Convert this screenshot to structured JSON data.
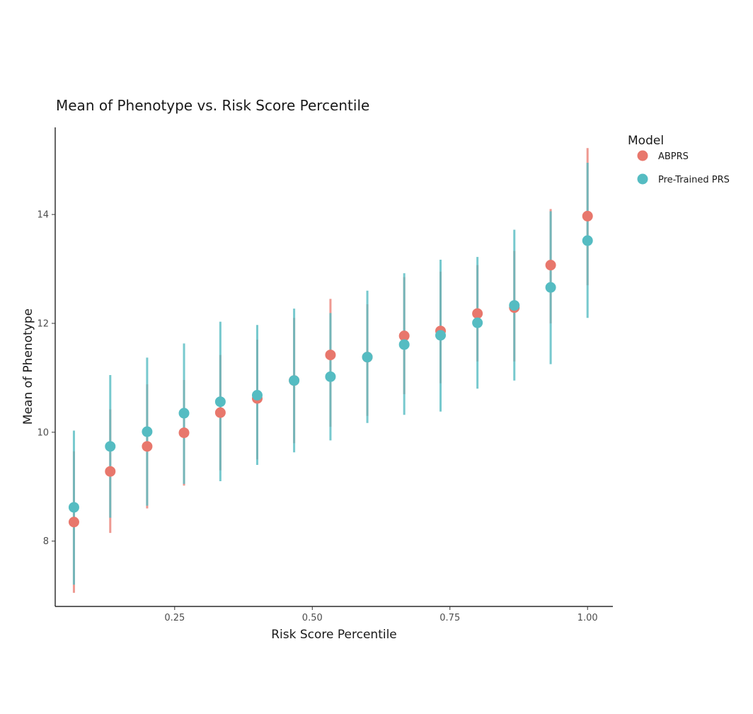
{
  "chart_data": {
    "type": "scatter",
    "title": "Mean of Phenotype vs. Risk Score Percentile",
    "xlabel": "Risk Score Percentile",
    "ylabel": "Mean of Phenotype",
    "xlim": [
      0.033,
      1.046
    ],
    "ylim": [
      6.8,
      15.6
    ],
    "x_ticks": [
      0.25,
      0.5,
      0.75,
      1.0
    ],
    "x_tick_labels": [
      "0.25",
      "0.50",
      "0.75",
      "1.00"
    ],
    "y_ticks": [
      8,
      10,
      12,
      14
    ],
    "y_tick_labels": [
      "8",
      "10",
      "12",
      "14"
    ],
    "grid": false,
    "legend": {
      "title": "Model",
      "position": "right"
    },
    "x": [
      0.067,
      0.133,
      0.2,
      0.267,
      0.333,
      0.4,
      0.467,
      0.533,
      0.6,
      0.667,
      0.733,
      0.8,
      0.867,
      0.933,
      1.0
    ],
    "series": [
      {
        "name": "ABPRS",
        "color": "#E8776C",
        "mean": [
          8.35,
          9.28,
          9.74,
          9.99,
          10.36,
          10.62,
          10.95,
          11.42,
          11.38,
          11.77,
          11.86,
          12.18,
          12.29,
          13.07,
          13.97
        ],
        "lower": [
          7.05,
          8.15,
          8.6,
          9.02,
          9.3,
          9.5,
          9.8,
          10.1,
          10.3,
          10.7,
          10.9,
          11.3,
          11.3,
          12.0,
          12.7
        ],
        "upper": [
          9.65,
          10.42,
          10.88,
          10.96,
          11.42,
          11.7,
          12.1,
          12.45,
          12.35,
          12.85,
          12.95,
          13.07,
          13.33,
          14.1,
          15.22
        ]
      },
      {
        "name": "Pre-Trained PRS",
        "color": "#55BCC2",
        "mean": [
          8.62,
          9.74,
          10.01,
          10.35,
          10.56,
          10.68,
          10.95,
          11.02,
          11.38,
          11.61,
          11.78,
          12.01,
          12.33,
          12.66,
          13.52
        ],
        "lower": [
          7.2,
          8.43,
          8.65,
          9.05,
          9.1,
          9.4,
          9.63,
          9.85,
          10.17,
          10.32,
          10.38,
          10.8,
          10.95,
          11.25,
          12.1
        ],
        "upper": [
          10.03,
          11.05,
          11.37,
          11.63,
          12.03,
          11.97,
          12.27,
          12.19,
          12.6,
          12.92,
          13.17,
          13.22,
          13.72,
          14.06,
          14.95
        ]
      }
    ]
  }
}
